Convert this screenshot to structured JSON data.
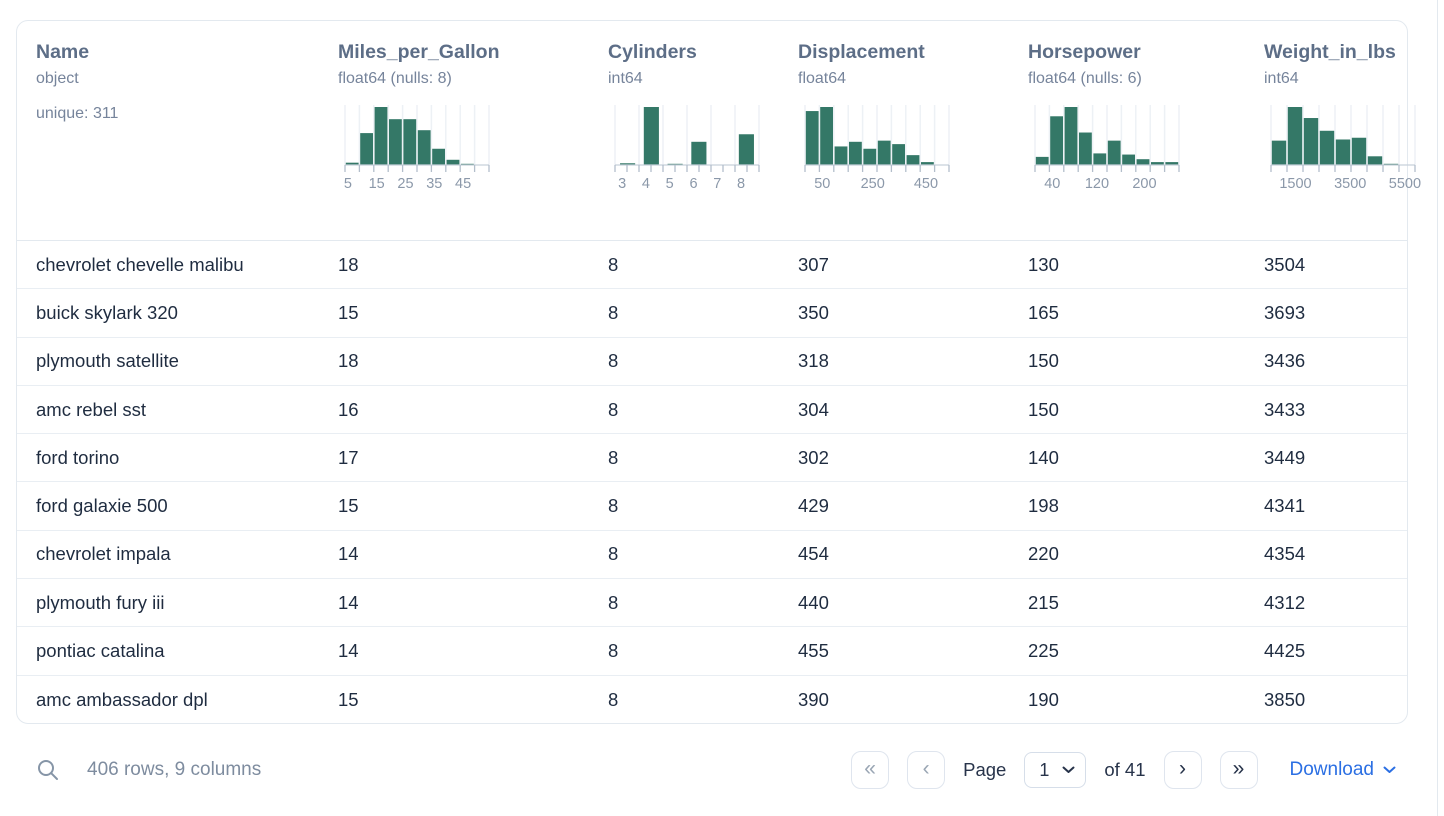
{
  "colors": {
    "bar_green": "#347867",
    "grid_line": "#EDF1F5",
    "axis_line": "#C7D0DA",
    "tick": "#B3BECB",
    "tick_label": "#8B98A9",
    "accent_blue": "#2B6FE3"
  },
  "table": {
    "columns": [
      {
        "name": "Name",
        "type": "object",
        "extra": "unique: 311"
      },
      {
        "name": "Miles_per_Gallon",
        "type": "float64 (nulls: 8)"
      },
      {
        "name": "Cylinders",
        "type": "int64"
      },
      {
        "name": "Displacement",
        "type": "float64"
      },
      {
        "name": "Horsepower",
        "type": "float64 (nulls: 6)"
      },
      {
        "name": "Weight_in_lbs",
        "type": "int64"
      }
    ],
    "rows": [
      [
        "chevrolet chevelle malibu",
        "18",
        "8",
        "307",
        "130",
        "3504"
      ],
      [
        "buick skylark 320",
        "15",
        "8",
        "350",
        "165",
        "3693"
      ],
      [
        "plymouth satellite",
        "18",
        "8",
        "318",
        "150",
        "3436"
      ],
      [
        "amc rebel sst",
        "16",
        "8",
        "304",
        "150",
        "3433"
      ],
      [
        "ford torino",
        "17",
        "8",
        "302",
        "140",
        "3449"
      ],
      [
        "ford galaxie 500",
        "15",
        "8",
        "429",
        "198",
        "4341"
      ],
      [
        "chevrolet impala",
        "14",
        "8",
        "454",
        "220",
        "4354"
      ],
      [
        "plymouth fury iii",
        "14",
        "8",
        "440",
        "215",
        "4312"
      ],
      [
        "pontiac catalina",
        "14",
        "8",
        "455",
        "225",
        "4425"
      ],
      [
        "amc ambassador dpl",
        "15",
        "8",
        "390",
        "190",
        "3850"
      ]
    ]
  },
  "chart_data": [
    {
      "type": "bar",
      "title": "Miles_per_Gallon histogram",
      "rel_heights": [
        0.04,
        0.55,
        1.0,
        0.79,
        0.79,
        0.6,
        0.28,
        0.09,
        0.02,
        0
      ],
      "tick_divisions": 10,
      "grid_divisions": 10,
      "labels": [
        [
          "5",
          0.02
        ],
        [
          "15",
          0.22
        ],
        [
          "25",
          0.42
        ],
        [
          "35",
          0.62
        ],
        [
          "45",
          0.82
        ]
      ]
    },
    {
      "type": "bar",
      "title": "Cylinders histogram",
      "rel_heights": [
        0.03,
        1.0,
        0.02,
        0.4,
        0,
        0.53
      ],
      "tick_divisions": 12,
      "grid_divisions": 6,
      "bar_positions": [
        0.035,
        0.2,
        0.365,
        0.53,
        0.695,
        0.86
      ],
      "bar_width_frac": 0.105,
      "labels": [
        [
          "3",
          0.05
        ],
        [
          "4",
          0.215
        ],
        [
          "5",
          0.38
        ],
        [
          "6",
          0.545
        ],
        [
          "7",
          0.71
        ],
        [
          "8",
          0.875
        ]
      ]
    },
    {
      "type": "bar",
      "title": "Displacement histogram",
      "rel_heights": [
        0.93,
        1.0,
        0.32,
        0.4,
        0.28,
        0.42,
        0.36,
        0.17,
        0.05,
        0
      ],
      "tick_divisions": 10,
      "grid_divisions": 10,
      "labels": [
        [
          "50",
          0.12
        ],
        [
          "250",
          0.47
        ],
        [
          "450",
          0.84
        ]
      ]
    },
    {
      "type": "bar",
      "title": "Horsepower histogram",
      "rel_heights": [
        0.14,
        0.84,
        1.0,
        0.56,
        0.2,
        0.42,
        0.18,
        0.1,
        0.05,
        0.05
      ],
      "tick_divisions": 10,
      "grid_divisions": 10,
      "labels": [
        [
          "40",
          0.12
        ],
        [
          "120",
          0.43
        ],
        [
          "200",
          0.76
        ]
      ]
    },
    {
      "type": "bar",
      "title": "Weight_in_lbs histogram",
      "rel_heights": [
        0.42,
        1.0,
        0.81,
        0.59,
        0.44,
        0.47,
        0.15,
        0.02,
        0
      ],
      "tick_divisions": 9,
      "grid_divisions": 9,
      "labels": [
        [
          "1500",
          0.17
        ],
        [
          "3500",
          0.55
        ],
        [
          "5500",
          0.93
        ]
      ]
    }
  ],
  "footer": {
    "summary": "406 rows, 9 columns",
    "pagination": {
      "first_icon": "«",
      "prev_icon": "‹",
      "next_icon": "›",
      "last_icon": "»",
      "first_disabled": true,
      "prev_disabled": true,
      "next_disabled": false,
      "last_disabled": false,
      "page_label": "Page",
      "page_value": "1",
      "of_label": "of 41"
    },
    "download_label": "Download"
  }
}
